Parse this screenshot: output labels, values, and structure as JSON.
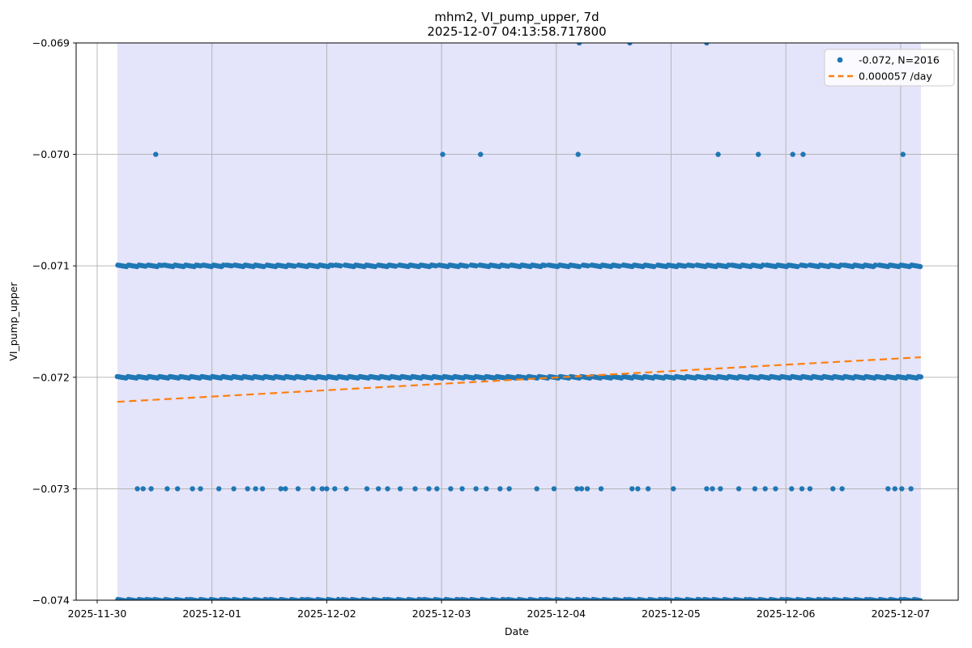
{
  "figure": {
    "title_line1": "mhm2, VI_pump_upper, 7d",
    "title_line2": "2025-12-07 04:13:58.717800",
    "xlabel": "Date",
    "ylabel": "VI_pump_upper"
  },
  "legend": {
    "entries": [
      {
        "marker": "dot",
        "label": "-0.072, N=2016",
        "color": "#1f77b4"
      },
      {
        "marker": "dashed-line",
        "label": "0.000057 /day",
        "color": "#ff7f0e"
      }
    ]
  },
  "chart_data": {
    "type": "scatter",
    "title": "mhm2, VI_pump_upper, 7d\n2025-12-07 04:13:58.717800",
    "xlabel": "Date",
    "ylabel": "VI_pump_upper",
    "grid": true,
    "legend_position": "upper right",
    "marker_color": "#1f77b4",
    "grid_color": "#b0b0b0",
    "x_axis": {
      "unit": "days since 2025-11-30 00:00",
      "tick_days": [
        0,
        1,
        2,
        3,
        4,
        5,
        6,
        7
      ],
      "tick_labels": [
        "2025-11-30",
        "2025-12-01",
        "2025-12-02",
        "2025-12-03",
        "2025-12-04",
        "2025-12-05",
        "2025-12-06",
        "2025-12-07"
      ],
      "range_days": [
        -0.183,
        7.5
      ]
    },
    "y_axis": {
      "ticks": [
        -0.069,
        -0.07,
        -0.071,
        -0.072,
        -0.073,
        -0.074
      ],
      "tick_labels": [
        "−0.069",
        "−0.070",
        "−0.071",
        "−0.072",
        "−0.073",
        "−0.074"
      ],
      "range": [
        -0.074,
        -0.069
      ]
    },
    "shaded_window": {
      "start_day": 0.176,
      "end_day": 7.176,
      "color": "#e4e4fa"
    },
    "stats": {
      "median_value": -0.072,
      "n_points": 2016
    },
    "trend": {
      "label": "0.000057 /day",
      "slope_per_day": 5.7e-05,
      "start_day": 0.176,
      "start_value": -0.07222,
      "end_day": 7.176,
      "end_value": -0.07182,
      "color": "#ff7f0e",
      "style": "dashed"
    },
    "levels": [
      {
        "value": -0.069,
        "points_days": [
          4.2,
          4.64,
          5.31
        ]
      },
      {
        "value": -0.07,
        "points_days": [
          0.51,
          3.01,
          3.34,
          4.19,
          5.41,
          5.76,
          6.06,
          6.15,
          7.02
        ]
      },
      {
        "value": -0.071,
        "segments_days": [
          [
            0.18,
            0.42
          ],
          [
            0.445,
            0.56
          ],
          [
            0.585,
            0.9
          ],
          [
            0.925,
            1.1
          ],
          [
            1.13,
            1.17
          ],
          [
            1.2,
            1.45
          ],
          [
            1.48,
            1.72
          ],
          [
            1.755,
            2.05
          ],
          [
            2.08,
            2.12
          ],
          [
            2.16,
            2.42
          ],
          [
            2.45,
            2.6
          ],
          [
            2.635,
            2.95
          ],
          [
            2.98,
            3.22
          ],
          [
            3.26,
            3.3
          ],
          [
            3.335,
            3.58
          ],
          [
            3.61,
            3.9
          ],
          [
            3.935,
            4.2
          ],
          [
            4.235,
            4.275
          ],
          [
            4.31,
            4.55
          ],
          [
            4.585,
            4.85
          ],
          [
            4.885,
            5.12
          ],
          [
            5.15,
            5.19
          ],
          [
            5.225,
            5.5
          ],
          [
            5.53,
            5.8
          ],
          [
            5.835,
            6.1
          ],
          [
            6.135,
            6.175
          ],
          [
            6.21,
            6.48
          ],
          [
            6.51,
            6.78
          ],
          [
            6.815,
            7.17
          ]
        ]
      },
      {
        "value": -0.072,
        "segments_days": [
          [
            0.176,
            7.176
          ]
        ]
      },
      {
        "value": -0.073,
        "points_days": [
          0.35,
          0.4,
          0.47,
          0.61,
          0.7,
          0.83,
          0.9,
          1.06,
          1.19,
          1.31,
          1.38,
          1.44,
          1.6,
          1.64,
          1.75,
          1.88,
          1.96,
          2.0,
          2.07,
          2.17,
          2.35,
          2.45,
          2.53,
          2.64,
          2.77,
          2.89,
          2.96,
          3.08,
          3.18,
          3.3,
          3.39,
          3.51,
          3.59,
          3.83,
          3.98,
          4.18,
          4.22,
          4.27,
          4.39,
          4.66,
          4.71,
          4.8,
          5.02,
          5.31,
          5.36,
          5.43,
          5.59,
          5.73,
          5.82,
          5.91,
          6.05,
          6.14,
          6.21,
          6.41,
          6.49,
          6.89,
          6.95,
          7.01,
          7.09
        ]
      },
      {
        "value": -0.074,
        "segments_days": [
          [
            0.18,
            0.4
          ],
          [
            0.43,
            0.47
          ],
          [
            0.5,
            0.78
          ],
          [
            0.81,
            1.08
          ],
          [
            1.11,
            1.15
          ],
          [
            1.19,
            1.48
          ],
          [
            1.51,
            1.8
          ],
          [
            1.83,
            2.1
          ],
          [
            2.14,
            2.18
          ],
          [
            2.22,
            2.5
          ],
          [
            2.53,
            2.82
          ],
          [
            2.85,
            3.15
          ],
          [
            3.18,
            3.22
          ],
          [
            3.26,
            3.55
          ],
          [
            3.58,
            3.88
          ],
          [
            3.91,
            4.2
          ],
          [
            4.24,
            4.28
          ],
          [
            4.32,
            4.6
          ],
          [
            4.63,
            4.92
          ],
          [
            4.95,
            5.25
          ],
          [
            5.29,
            5.33
          ],
          [
            5.37,
            5.65
          ],
          [
            5.68,
            5.98
          ],
          [
            6.01,
            6.3
          ],
          [
            6.34,
            6.38
          ],
          [
            6.42,
            6.7
          ],
          [
            6.73,
            7.0
          ],
          [
            7.03,
            7.17
          ]
        ]
      }
    ]
  }
}
